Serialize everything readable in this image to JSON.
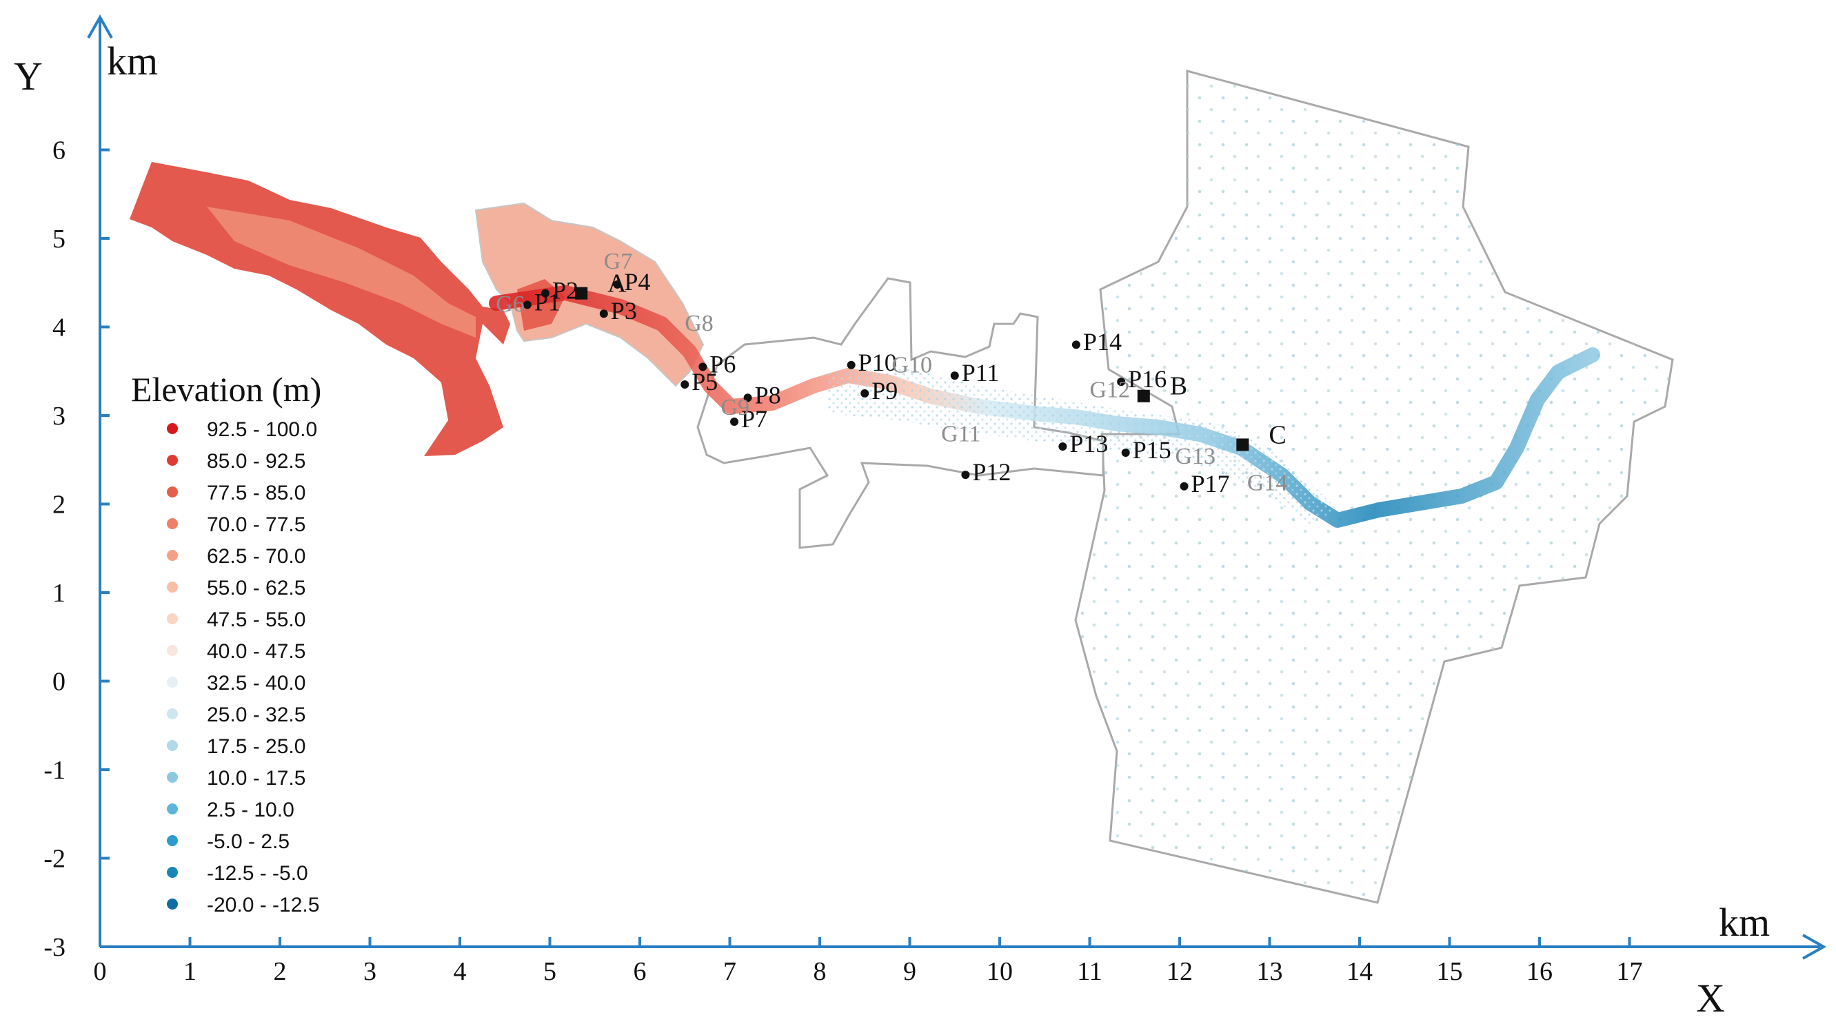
{
  "axes": {
    "x_title": "X",
    "y_title": "Y",
    "x_unit": "km",
    "y_unit": "km",
    "x_ticks": [
      "0",
      "1",
      "2",
      "3",
      "4",
      "5",
      "6",
      "7",
      "8",
      "9",
      "10",
      "11",
      "12",
      "13",
      "14",
      "15",
      "16",
      "17"
    ],
    "y_ticks": [
      "6",
      "5",
      "4",
      "3",
      "2",
      "1",
      "0",
      "-1",
      "-2",
      "-3"
    ],
    "x_range": [
      0,
      19
    ],
    "y_range": [
      -3,
      7.5
    ]
  },
  "legend": {
    "title": "Elevation (m)",
    "items": [
      {
        "label": "92.5 - 100.0",
        "color": "#d7191c"
      },
      {
        "label": "85.0 - 92.5",
        "color": "#e03b32"
      },
      {
        "label": "77.5 - 85.0",
        "color": "#e85d4e"
      },
      {
        "label": "70.0 - 77.5",
        "color": "#ef7f68"
      },
      {
        "label": "62.5 - 70.0",
        "color": "#f4a084"
      },
      {
        "label": "55.0 - 62.5",
        "color": "#f8bea6"
      },
      {
        "label": "47.5 - 55.0",
        "color": "#fbd4c4"
      },
      {
        "label": "40.0 - 47.5",
        "color": "#f9e6df"
      },
      {
        "label": "32.5 - 40.0",
        "color": "#e6eff4"
      },
      {
        "label": "25.0 - 32.5",
        "color": "#cfe5f0"
      },
      {
        "label": "17.5 - 25.0",
        "color": "#b1d8ea"
      },
      {
        "label": "10.0 - 17.5",
        "color": "#8dc8e3"
      },
      {
        "label": "2.5 - 10.0",
        "color": "#5fb5d9"
      },
      {
        "label": "-5.0 - 2.5",
        "color": "#2c9ccb"
      },
      {
        "label": "-12.5 - -5.0",
        "color": "#1a84b8"
      },
      {
        "label": "-20.0 - -12.5",
        "color": "#0f6ea4"
      }
    ]
  },
  "stations": [
    {
      "label": "P1",
      "x": 4.75,
      "y": 4.25
    },
    {
      "label": "P2",
      "x": 4.95,
      "y": 4.38
    },
    {
      "label": "P3",
      "x": 5.6,
      "y": 4.15
    },
    {
      "label": "P4",
      "x": 5.75,
      "y": 4.48
    },
    {
      "label": "P5",
      "x": 6.5,
      "y": 3.35
    },
    {
      "label": "P6",
      "x": 6.7,
      "y": 3.55
    },
    {
      "label": "P7",
      "x": 7.05,
      "y": 2.93
    },
    {
      "label": "P8",
      "x": 7.2,
      "y": 3.2
    },
    {
      "label": "P9",
      "x": 8.5,
      "y": 3.25
    },
    {
      "label": "P10",
      "x": 8.35,
      "y": 3.57
    },
    {
      "label": "P11",
      "x": 9.5,
      "y": 3.45
    },
    {
      "label": "P12",
      "x": 9.62,
      "y": 2.33
    },
    {
      "label": "P13",
      "x": 10.7,
      "y": 2.65
    },
    {
      "label": "P14",
      "x": 10.85,
      "y": 3.8
    },
    {
      "label": "P15",
      "x": 11.4,
      "y": 2.58
    },
    {
      "label": "P16",
      "x": 11.35,
      "y": 3.38
    },
    {
      "label": "P17",
      "x": 12.05,
      "y": 2.2
    }
  ],
  "gauges": [
    {
      "label": "G6",
      "x": 4.4,
      "y": 4.27
    },
    {
      "label": "G7",
      "x": 5.6,
      "y": 4.75
    },
    {
      "label": "G8",
      "x": 6.5,
      "y": 4.05
    },
    {
      "label": "G9",
      "x": 6.9,
      "y": 3.1
    },
    {
      "label": "G10",
      "x": 8.8,
      "y": 3.58
    },
    {
      "label": "G11",
      "x": 9.35,
      "y": 2.8
    },
    {
      "label": "G12",
      "x": 11.0,
      "y": 3.3
    },
    {
      "label": "G13",
      "x": 11.95,
      "y": 2.55
    },
    {
      "label": "G14",
      "x": 12.75,
      "y": 2.25
    }
  ],
  "sites": [
    {
      "label": "A",
      "x": 5.35,
      "y": 4.38
    },
    {
      "label": "B",
      "x": 11.6,
      "y": 3.22
    },
    {
      "label": "C",
      "x": 12.7,
      "y": 2.67
    }
  ]
}
